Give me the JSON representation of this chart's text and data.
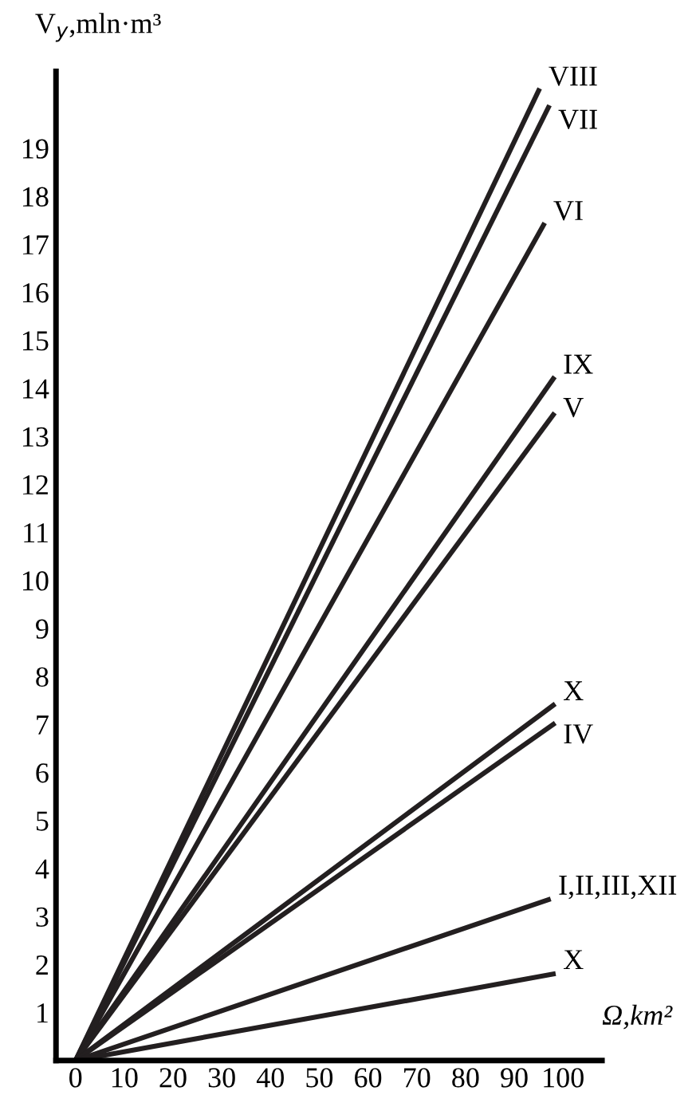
{
  "chart_data": {
    "type": "line",
    "xlabel": "Ω,km²",
    "ylabel": "V$_{y}$,mln·m³",
    "xlim": [
      -4,
      108
    ],
    "ylim": [
      0,
      20.6
    ],
    "xticks": [
      0,
      10,
      20,
      30,
      40,
      50,
      60,
      70,
      80,
      90,
      100
    ],
    "yticks": [
      1,
      2,
      3,
      4,
      5,
      6,
      7,
      8,
      9,
      10,
      11,
      12,
      13,
      14,
      15,
      16,
      17,
      18,
      19
    ],
    "grid": false,
    "legend": false,
    "marker": "none",
    "line_style": "solid",
    "series": [
      {
        "name": "VIII",
        "color": "#231f20",
        "x": [
          0,
          95
        ],
        "values": [
          0,
          20.2
        ]
      },
      {
        "name": "VII",
        "color": "#231f20",
        "x": [
          0,
          97
        ],
        "values": [
          0,
          19.85
        ]
      },
      {
        "name": "VI",
        "color": "#231f20",
        "x": [
          0,
          96
        ],
        "values": [
          0,
          17.4
        ]
      },
      {
        "name": "IX",
        "color": "#231f20",
        "x": [
          0,
          98
        ],
        "values": [
          0,
          14.2
        ]
      },
      {
        "name": "V",
        "color": "#231f20",
        "x": [
          0,
          98
        ],
        "values": [
          0,
          13.45
        ]
      },
      {
        "name": "X",
        "color": "#231f20",
        "x": [
          0,
          98
        ],
        "values": [
          0,
          7.4
        ]
      },
      {
        "name": "IV",
        "color": "#231f20",
        "x": [
          0,
          98
        ],
        "values": [
          0,
          7.0
        ]
      },
      {
        "name": "I,II,III,XII",
        "color": "#231f20",
        "x": [
          0,
          97
        ],
        "values": [
          0,
          3.35
        ]
      },
      {
        "name": "X",
        "color": "#231f20",
        "x": [
          0,
          98
        ],
        "values": [
          0,
          1.8
        ]
      }
    ]
  }
}
